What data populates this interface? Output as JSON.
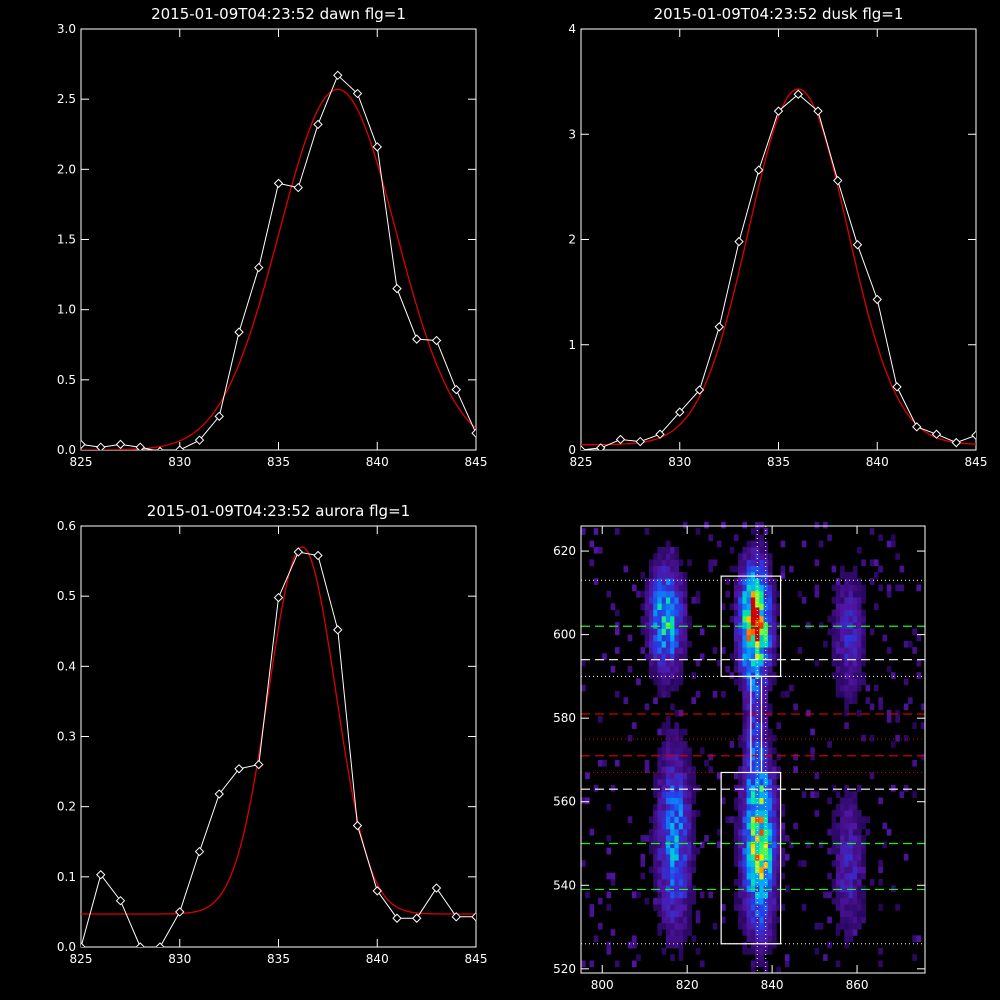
{
  "colors": {
    "background": "#000000",
    "data": "#ffffff",
    "fit": "#dd0000",
    "dash_green": "#22ee22",
    "dash_red": "#cc0000",
    "dash_white": "#ffffff"
  },
  "chart_data": [
    {
      "type": "line",
      "title": "2015-01-09T04:23:52 dawn flg=1",
      "xlim": [
        825,
        845
      ],
      "ylim": [
        0,
        3.0
      ],
      "xticks": [
        825,
        830,
        835,
        840,
        845
      ],
      "yticks": [
        0.0,
        0.5,
        1.0,
        1.5,
        2.0,
        2.5,
        3.0
      ],
      "ytick_labels": [
        "0.0",
        "0.5",
        "1.0",
        "1.5",
        "2.0",
        "2.5",
        "3.0"
      ],
      "series": [
        {
          "role": "data",
          "marker": "diamond",
          "x": [
            825,
            826,
            827,
            828,
            829,
            830,
            831,
            832,
            833,
            834,
            835,
            836,
            837,
            838,
            839,
            840,
            841,
            842,
            843,
            844,
            845
          ],
          "y": [
            0.04,
            0.02,
            0.04,
            0.02,
            -0.01,
            0.0,
            0.07,
            0.24,
            0.84,
            1.3,
            1.9,
            1.87,
            2.32,
            2.67,
            2.54,
            2.16,
            1.15,
            0.79,
            0.78,
            0.43,
            0.12
          ]
        },
        {
          "role": "fit",
          "shape": "gaussian",
          "amplitude": 2.57,
          "center": 838.0,
          "sigma": 2.95,
          "offset": 0.0
        }
      ]
    },
    {
      "type": "line",
      "title": "2015-01-09T04:23:52 dusk flg=1",
      "xlim": [
        825,
        845
      ],
      "ylim": [
        0,
        4
      ],
      "xticks": [
        825,
        830,
        835,
        840,
        845
      ],
      "yticks": [
        0,
        1,
        2,
        3,
        4
      ],
      "ytick_labels": [
        "0",
        "1",
        "2",
        "3",
        "4"
      ],
      "series": [
        {
          "role": "data",
          "marker": "diamond",
          "x": [
            825,
            826,
            827,
            828,
            829,
            830,
            831,
            832,
            833,
            834,
            835,
            836,
            837,
            838,
            839,
            840,
            841,
            842,
            843,
            844,
            845
          ],
          "y": [
            0.0,
            0.02,
            0.1,
            0.08,
            0.15,
            0.36,
            0.57,
            1.17,
            1.98,
            2.66,
            3.22,
            3.38,
            3.22,
            2.56,
            1.95,
            1.43,
            0.6,
            0.22,
            0.15,
            0.07,
            0.14
          ]
        },
        {
          "role": "fit",
          "shape": "gaussian",
          "amplitude": 3.38,
          "center": 836.0,
          "sigma": 2.5,
          "offset": 0.05
        }
      ]
    },
    {
      "type": "line",
      "title": "2015-01-09T04:23:52 aurora flg=1",
      "xlim": [
        825,
        845
      ],
      "ylim": [
        0,
        0.6
      ],
      "xticks": [
        825,
        830,
        835,
        840,
        845
      ],
      "yticks": [
        0.0,
        0.1,
        0.2,
        0.3,
        0.4,
        0.5,
        0.6
      ],
      "ytick_labels": [
        "0.0",
        "0.1",
        "0.2",
        "0.3",
        "0.4",
        "0.5",
        "0.6"
      ],
      "series": [
        {
          "role": "data",
          "marker": "diamond",
          "x": [
            825,
            826,
            827,
            828,
            829,
            830,
            831,
            832,
            833,
            834,
            835,
            836,
            837,
            838,
            839,
            840,
            841,
            842,
            843,
            844,
            845
          ],
          "y": [
            0.0,
            0.103,
            0.066,
            0.0,
            0.0,
            0.05,
            0.136,
            0.218,
            0.254,
            0.26,
            0.498,
            0.563,
            0.558,
            0.452,
            0.173,
            0.08,
            0.041,
            0.041,
            0.084,
            0.043,
            0.043
          ]
        },
        {
          "role": "fit",
          "shape": "gaussian",
          "amplitude": 0.523,
          "center": 836.2,
          "sigma": 1.7,
          "offset": 0.047
        }
      ]
    },
    {
      "type": "heatmap",
      "title": "",
      "xlim": [
        795,
        876
      ],
      "ylim": [
        519,
        626
      ],
      "xticks": [
        800,
        820,
        840,
        860
      ],
      "yticks": [
        520,
        540,
        560,
        580,
        600,
        620
      ],
      "ytick_labels": [
        "520",
        "540",
        "560",
        "580",
        "600",
        "620"
      ],
      "blobs": [
        {
          "cx": 815,
          "cy": 604,
          "sx": 2.6,
          "sy": 8,
          "peak": 0.55
        },
        {
          "cx": 817,
          "cy": 551,
          "sx": 2.6,
          "sy": 14,
          "peak": 0.42
        },
        {
          "cx": 836,
          "cy": 603,
          "sx": 2.4,
          "sy": 9,
          "peak": 0.9
        },
        {
          "cx": 837,
          "cy": 550,
          "sx": 2.5,
          "sy": 13,
          "peak": 0.75
        },
        {
          "cx": 836,
          "cy": 575,
          "sx": 1.6,
          "sy": 12,
          "peak": 0.2
        },
        {
          "cx": 858,
          "cy": 600,
          "sx": 2.5,
          "sy": 10,
          "peak": 0.22
        },
        {
          "cx": 858,
          "cy": 545,
          "sx": 2.5,
          "sy": 12,
          "peak": 0.2
        }
      ],
      "hot_spots": [
        {
          "x": 836,
          "y": 605,
          "v": 1.0
        },
        {
          "x": 838,
          "y": 544,
          "v": 0.85
        },
        {
          "x": 836,
          "y": 602,
          "v": 0.95
        }
      ],
      "boxes": [
        {
          "x0": 828,
          "x1": 842,
          "y0": 590,
          "y1": 614
        },
        {
          "x0": 828,
          "x1": 842,
          "y0": 526,
          "y1": 567
        },
        {
          "x0": 835,
          "x1": 837.5,
          "y0": 567,
          "y1": 590
        }
      ],
      "dotted_verticals": [
        836.5,
        838.5
      ],
      "dotted_horizontals": [
        {
          "y": 613,
          "color": "white"
        },
        {
          "y": 590,
          "color": "white"
        },
        {
          "y": 526,
          "color": "white"
        },
        {
          "y": 575,
          "color": "red"
        },
        {
          "y": 567,
          "color": "red"
        }
      ],
      "dashed_horizontals": [
        {
          "y": 602,
          "color": "green"
        },
        {
          "y": 594,
          "color": "white"
        },
        {
          "y": 581,
          "color": "red"
        },
        {
          "y": 571,
          "color": "red"
        },
        {
          "y": 563,
          "color": "white"
        },
        {
          "y": 550,
          "color": "green"
        },
        {
          "y": 539,
          "color": "green"
        }
      ]
    }
  ]
}
